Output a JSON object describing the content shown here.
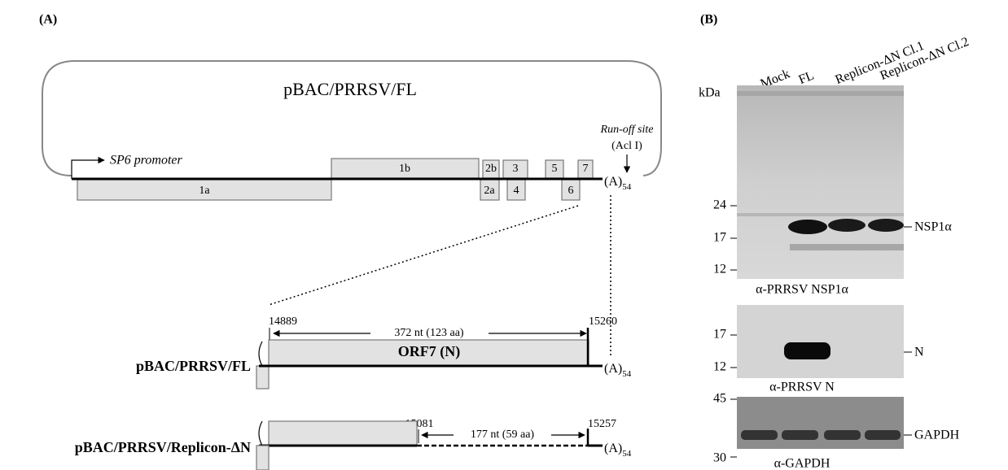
{
  "panel_a": {
    "label": "(A)",
    "plasmid_title": "pBAC/PRRSV/FL",
    "promoter": "SP6 promoter",
    "runoff_site": "Run-off site",
    "runoff_enzyme": "(Acl I)",
    "genes": [
      "1a",
      "1b",
      "2a",
      "2b",
      "3",
      "4",
      "5",
      "6",
      "7"
    ],
    "polya": {
      "text": "(A)",
      "sub": "54"
    },
    "constructs": [
      {
        "name": "pBAC/PRRSV/FL",
        "start": "14889",
        "end": "15260",
        "length": "372 nt (123 aa)",
        "orf": "ORF7 (N)",
        "polya": {
          "text": "(A)",
          "sub": "54"
        }
      },
      {
        "name": "pBAC/PRRSV/Replicon-ΔN",
        "start": "15081",
        "end": "15257",
        "length": "177 nt (59 aa)",
        "polya": {
          "text": "(A)",
          "sub": "54"
        }
      }
    ]
  },
  "panel_b": {
    "label": "(B)",
    "lanes": [
      "Mock",
      "FL",
      "Replicon-ΔN Cl.1",
      "Replicon-ΔN Cl.2"
    ],
    "unit": "kDa",
    "blots": [
      {
        "markers": [
          "24",
          "17",
          "12"
        ],
        "band": "NSP1α",
        "antibody": "α-PRRSV NSP1α"
      },
      {
        "markers": [
          "17",
          "12"
        ],
        "band": "N",
        "antibody": "α-PRRSV N"
      },
      {
        "markers": [
          "45",
          "30"
        ],
        "band": "GAPDH",
        "antibody": "α-GAPDH"
      }
    ]
  }
}
